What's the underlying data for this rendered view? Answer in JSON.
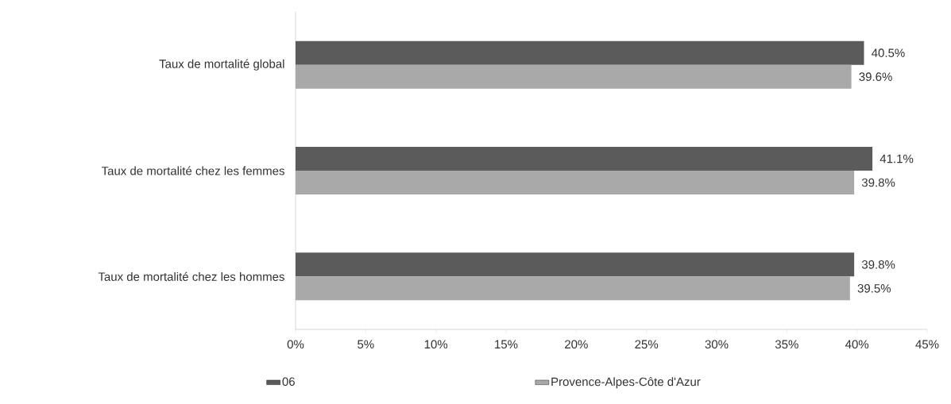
{
  "chart_data": {
    "type": "bar",
    "orientation": "horizontal",
    "categories": [
      "Taux de mortalité global",
      "Taux de mortalité chez les femmes",
      "Taux de mortalité chez les hommes"
    ],
    "series": [
      {
        "name": "06",
        "color": "#5b5b5b",
        "values": [
          40.5,
          41.1,
          39.8
        ],
        "value_labels": [
          "40.5%",
          "41.1%",
          "39.8%"
        ]
      },
      {
        "name": "Provence-Alpes-Côte d'Azur",
        "color": "#a9a9a9",
        "values": [
          39.6,
          39.8,
          39.5
        ],
        "value_labels": [
          "39.6%",
          "39.8%",
          "39.5%"
        ]
      }
    ],
    "xlim": [
      0,
      45
    ],
    "xticks": [
      {
        "value": 0,
        "label": "0%"
      },
      {
        "value": 5,
        "label": "5%"
      },
      {
        "value": 10,
        "label": "10%"
      },
      {
        "value": 15,
        "label": "15%"
      },
      {
        "value": 20,
        "label": "20%"
      },
      {
        "value": 25,
        "label": "25%"
      },
      {
        "value": 30,
        "label": "30%"
      },
      {
        "value": 35,
        "label": "35%"
      },
      {
        "value": 40,
        "label": "40%"
      },
      {
        "value": 45,
        "label": "45%"
      }
    ],
    "grid": false,
    "legend": "bottom"
  }
}
